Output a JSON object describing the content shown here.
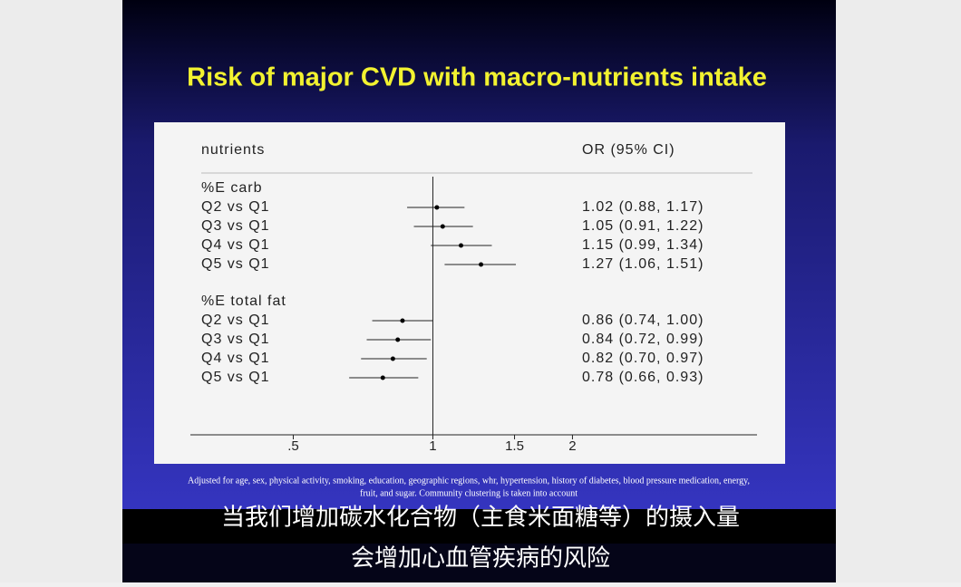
{
  "chart_data": {
    "type": "forest",
    "title": "Risk of major CVD with macro-nutrients intake",
    "label_header": "nutrients",
    "value_header": "OR (95% CI)",
    "xscale": "log",
    "xlim": [
      0.3,
      5
    ],
    "xticks": [
      {
        "value": 0.5,
        "label": ".5"
      },
      1,
      1.5,
      2
    ],
    "reference": 1,
    "groups": [
      {
        "name": "%E carb",
        "categories": [
          "Q2 vs Q1",
          "Q3 vs Q1",
          "Q4 vs Q1",
          "Q5 vs Q1"
        ],
        "values": [
          1.02,
          1.05,
          1.15,
          1.27
        ],
        "lower": [
          0.88,
          0.91,
          0.99,
          1.06
        ],
        "upper": [
          1.17,
          1.22,
          1.34,
          1.51
        ],
        "value_labels": [
          "1.02 (0.88, 1.17)",
          "1.05 (0.91, 1.22)",
          "1.15 (0.99, 1.34)",
          "1.27 (1.06, 1.51)"
        ]
      },
      {
        "name": "%E total fat",
        "categories": [
          "Q2 vs Q1",
          "Q3 vs Q1",
          "Q4 vs Q1",
          "Q5 vs Q1"
        ],
        "values": [
          0.86,
          0.84,
          0.82,
          0.78
        ],
        "lower": [
          0.74,
          0.72,
          0.7,
          0.66
        ],
        "upper": [
          1.0,
          0.99,
          0.97,
          0.93
        ],
        "value_labels": [
          "0.86 (0.74, 1.00)",
          "0.84 (0.72, 0.99)",
          "0.82 (0.70, 0.97)",
          "0.78 (0.66, 0.93)"
        ]
      }
    ]
  },
  "footnote": [
    "Adjusted for age, sex, physical activity, smoking, education, geographic regions, whr, hypertension, history of diabetes, blood pressure medication, energy,",
    "fruit, and sugar. Community clustering is taken into account"
  ],
  "subtitles": [
    "当我们增加碳水化合物（主食米面糖等）的摄入量",
    "会增加心血管疾病的风险"
  ]
}
